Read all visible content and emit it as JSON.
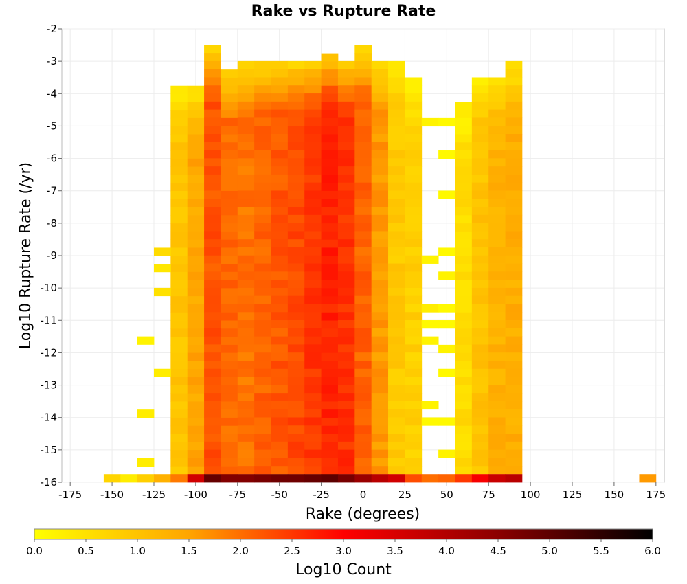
{
  "chart_data": {
    "type": "heatmap",
    "title": "Rake vs Rupture Rate",
    "xlabel": "Rake (degrees)",
    "ylabel": "Log10 Rupture Rate (/yr)",
    "xlim": [
      -180,
      180
    ],
    "ylim": [
      -16,
      -2
    ],
    "x_ticks": [
      "-175",
      "-150",
      "-125",
      "-100",
      "-75",
      "-50",
      "-25",
      "0",
      "25",
      "50",
      "75",
      "100",
      "125",
      "150",
      "175"
    ],
    "y_ticks": [
      "-2",
      "-3",
      "-4",
      "-5",
      "-6",
      "-7",
      "-8",
      "-9",
      "-10",
      "-11",
      "-12",
      "-13",
      "-14",
      "-15",
      "-16"
    ],
    "grid": true,
    "bin_width_x": 10,
    "bin_height_y": 0.25,
    "colorbar": {
      "label": "Log10 Count",
      "range": [
        0,
        6
      ],
      "ticks": [
        "0.0",
        "0.5",
        "1.0",
        "1.5",
        "2.0",
        "2.5",
        "3.0",
        "3.5",
        "4.0",
        "4.5",
        "5.0",
        "5.5",
        "6.0"
      ],
      "colors": [
        "#ffff00",
        "#ffa500",
        "#ff0000",
        "#8b0000",
        "#000000"
      ]
    },
    "column_profiles": [
      {
        "x": -110,
        "y_top": -3.88,
        "level": 0.95
      },
      {
        "x": -100,
        "y_top": -3.88,
        "level": 1.45
      },
      {
        "x": -90,
        "y_top": -2.62,
        "level": 2.25
      },
      {
        "x": -80,
        "y_top": -3.38,
        "level": 2.05
      },
      {
        "x": -70,
        "y_top": -3.12,
        "level": 1.95
      },
      {
        "x": -60,
        "y_top": -3.12,
        "level": 2.1
      },
      {
        "x": -50,
        "y_top": -3.12,
        "level": 2.2
      },
      {
        "x": -40,
        "y_top": -3.12,
        "level": 2.35
      },
      {
        "x": -30,
        "y_top": -3.12,
        "level": 2.5
      },
      {
        "x": -20,
        "y_top": -2.88,
        "level": 2.7
      },
      {
        "x": -10,
        "y_top": -3.12,
        "level": 2.55
      },
      {
        "x": 0,
        "y_top": -2.62,
        "level": 2.1
      },
      {
        "x": 10,
        "y_top": -3.12,
        "level": 1.6
      },
      {
        "x": 20,
        "y_top": -3.12,
        "level": 0.9
      },
      {
        "x": 30,
        "y_top": -3.62,
        "level": 0.8
      },
      {
        "x": 60,
        "y_top": -4.38,
        "level": 0.6
      },
      {
        "x": 70,
        "y_top": -3.62,
        "level": 1.0
      },
      {
        "x": 80,
        "y_top": -3.62,
        "level": 1.3
      },
      {
        "x": 90,
        "y_top": -3.12,
        "level": 1.35
      }
    ],
    "sparse_cells": [
      {
        "x": -120,
        "y": -8.88,
        "level": 0.6
      },
      {
        "x": -120,
        "y": -9.38,
        "level": 0.4
      },
      {
        "x": -120,
        "y": -10.12,
        "level": 0.5
      },
      {
        "x": -120,
        "y": -12.62,
        "level": 0.3
      },
      {
        "x": -130,
        "y": -11.62,
        "level": 0.2
      },
      {
        "x": -130,
        "y": -13.88,
        "level": 0.3
      },
      {
        "x": -130,
        "y": -15.38,
        "level": 0.3
      },
      {
        "x": 40,
        "y": -4.88,
        "level": 0.2
      },
      {
        "x": 40,
        "y": -9.12,
        "level": 0.2
      },
      {
        "x": 40,
        "y": -10.62,
        "level": 0.3
      },
      {
        "x": 40,
        "y": -11.12,
        "level": 0.1
      },
      {
        "x": 40,
        "y": -11.62,
        "level": 0.2
      },
      {
        "x": 40,
        "y": -13.62,
        "level": 0.2
      },
      {
        "x": 40,
        "y": -14.12,
        "level": 0.1
      },
      {
        "x": 50,
        "y": -4.88,
        "level": 0.1
      },
      {
        "x": 50,
        "y": -5.88,
        "level": 0.1
      },
      {
        "x": 50,
        "y": -7.12,
        "level": 0.1
      },
      {
        "x": 50,
        "y": -8.88,
        "level": 0.1
      },
      {
        "x": 50,
        "y": -9.62,
        "level": 0.2
      },
      {
        "x": 50,
        "y": -10.62,
        "level": 0.1
      },
      {
        "x": 50,
        "y": -11.12,
        "level": 0.1
      },
      {
        "x": 50,
        "y": -11.88,
        "level": 0.2
      },
      {
        "x": 50,
        "y": -12.62,
        "level": 0.1
      },
      {
        "x": 50,
        "y": -14.12,
        "level": 0.1
      },
      {
        "x": 50,
        "y": -15.12,
        "level": 0.2
      }
    ],
    "bottom_row": [
      {
        "x": -150,
        "level": 0.7
      },
      {
        "x": -140,
        "level": 0.3
      },
      {
        "x": -130,
        "level": 0.8
      },
      {
        "x": -120,
        "level": 1.3
      },
      {
        "x": -110,
        "level": 1.9
      },
      {
        "x": -100,
        "level": 3.6
      },
      {
        "x": -90,
        "level": 4.9
      },
      {
        "x": -80,
        "level": 4.6
      },
      {
        "x": -70,
        "level": 4.6
      },
      {
        "x": -60,
        "level": 4.7
      },
      {
        "x": -50,
        "level": 4.8
      },
      {
        "x": -40,
        "level": 4.8
      },
      {
        "x": -30,
        "level": 4.9
      },
      {
        "x": -20,
        "level": 5.0
      },
      {
        "x": -10,
        "level": 4.7
      },
      {
        "x": 0,
        "level": 4.3
      },
      {
        "x": 10,
        "level": 3.9
      },
      {
        "x": 20,
        "level": 3.6
      },
      {
        "x": 30,
        "level": 2.3
      },
      {
        "x": 40,
        "level": 2.0
      },
      {
        "x": 50,
        "level": 2.1
      },
      {
        "x": 60,
        "level": 2.5
      },
      {
        "x": 70,
        "level": 3.1
      },
      {
        "x": 80,
        "level": 3.7
      },
      {
        "x": 90,
        "level": 3.9
      },
      {
        "x": 170,
        "level": 1.6
      }
    ]
  }
}
